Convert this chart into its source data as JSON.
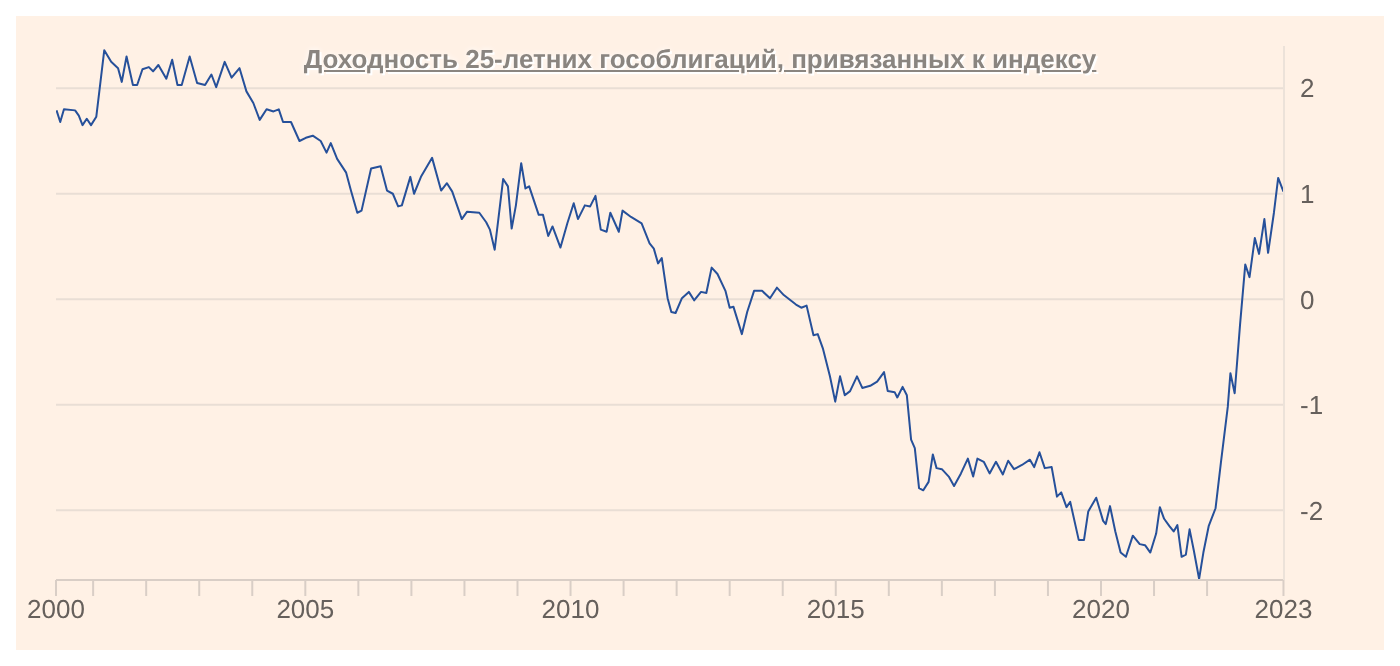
{
  "chart_data": {
    "type": "line",
    "title": "Доходность 25-летних гособлигаций, привязанных к индексу",
    "x": [
      2000.31,
      2000.38,
      2000.45,
      2000.66,
      2000.73,
      2000.8,
      2000.88,
      2000.96,
      2001.06,
      2001.21,
      2001.34,
      2001.47,
      2001.54,
      2001.63,
      2001.75,
      2001.83,
      2001.93,
      2002.05,
      2002.13,
      2002.23,
      2002.38,
      2002.49,
      2002.59,
      2002.67,
      2002.82,
      2002.96,
      2003.11,
      2003.23,
      2003.32,
      2003.48,
      2003.61,
      2003.76,
      2003.89,
      2004.02,
      2004.14,
      2004.27,
      2004.4,
      2004.5,
      2004.58,
      2004.73,
      2004.89,
      2005.01,
      2005.14,
      2005.29,
      2005.4,
      2005.48,
      2005.6,
      2005.77,
      2005.86,
      2005.98,
      2006.06,
      2006.24,
      2006.42,
      2006.54,
      2006.65,
      2006.75,
      2006.82,
      2006.98,
      2007.05,
      2007.18,
      2007.39,
      2007.56,
      2007.67,
      2007.77,
      2007.95,
      2008.05,
      2008.28,
      2008.41,
      2008.48,
      2008.57,
      2008.73,
      2008.82,
      2008.89,
      2008.97,
      2009.07,
      2009.15,
      2009.22,
      2009.4,
      2009.48,
      2009.58,
      2009.66,
      2009.81,
      2009.94,
      2010.06,
      2010.14,
      2010.27,
      2010.37,
      2010.47,
      2010.57,
      2010.68,
      2010.75,
      2010.91,
      2010.98,
      2011.14,
      2011.34,
      2011.49,
      2011.57,
      2011.65,
      2011.72,
      2011.83,
      2011.9,
      2011.98,
      2012.1,
      2012.23,
      2012.33,
      2012.46,
      2012.56,
      2012.66,
      2012.77,
      2012.92,
      2013.0,
      2013.07,
      2013.23,
      2013.33,
      2013.46,
      2013.61,
      2013.76,
      2013.89,
      2014.02,
      2014.25,
      2014.35,
      2014.45,
      2014.58,
      2014.66,
      2014.76,
      2014.89,
      2014.99,
      2015.08,
      2015.17,
      2015.27,
      2015.4,
      2015.5,
      2015.65,
      2015.78,
      2015.91,
      2015.98,
      2016.11,
      2016.16,
      2016.26,
      2016.34,
      2016.42,
      2016.49,
      2016.57,
      2016.65,
      2016.75,
      2016.83,
      2016.9,
      2017.0,
      2017.13,
      2017.23,
      2017.36,
      2017.49,
      2017.59,
      2017.67,
      2017.79,
      2017.9,
      2018.02,
      2018.15,
      2018.25,
      2018.36,
      2018.51,
      2018.66,
      2018.74,
      2018.84,
      2018.94,
      2019.07,
      2019.17,
      2019.25,
      2019.35,
      2019.42,
      2019.58,
      2019.68,
      2019.76,
      2019.91,
      2020.04,
      2020.09,
      2020.17,
      2020.27,
      2020.37,
      2020.47,
      2020.6,
      2020.73,
      2020.83,
      2020.93,
      2021.04,
      2021.11,
      2021.19,
      2021.29,
      2021.37,
      2021.44,
      2021.52,
      2021.6,
      2021.67,
      2021.75,
      2021.85,
      2021.93,
      2022.03,
      2022.16,
      2022.26,
      2022.39,
      2022.44,
      2022.52,
      2022.62,
      2022.72,
      2022.8,
      2022.9,
      2022.98,
      2023.08,
      2023.15,
      2023.26,
      2023.34,
      2023.44
    ],
    "series": [
      {
        "color": "#26509a",
        "values": [
          1.79,
          1.68,
          1.8,
          1.79,
          1.74,
          1.65,
          1.71,
          1.65,
          1.73,
          2.36,
          2.25,
          2.19,
          2.06,
          2.3,
          2.03,
          2.03,
          2.18,
          2.2,
          2.16,
          2.22,
          2.09,
          2.27,
          2.03,
          2.03,
          2.3,
          2.05,
          2.03,
          2.13,
          2.01,
          2.25,
          2.1,
          2.19,
          1.97,
          1.86,
          1.7,
          1.8,
          1.78,
          1.8,
          1.68,
          1.68,
          1.5,
          1.53,
          1.55,
          1.5,
          1.39,
          1.48,
          1.33,
          1.2,
          1.03,
          0.82,
          0.84,
          1.24,
          1.26,
          1.03,
          1.0,
          0.88,
          0.89,
          1.16,
          1.0,
          1.16,
          1.34,
          1.03,
          1.1,
          1.02,
          0.76,
          0.83,
          0.82,
          0.73,
          0.66,
          0.47,
          1.14,
          1.07,
          0.67,
          0.89,
          1.29,
          1.05,
          1.07,
          0.8,
          0.8,
          0.6,
          0.69,
          0.49,
          0.72,
          0.91,
          0.76,
          0.89,
          0.88,
          0.98,
          0.66,
          0.64,
          0.82,
          0.64,
          0.84,
          0.78,
          0.72,
          0.53,
          0.48,
          0.34,
          0.39,
          0.01,
          -0.12,
          -0.13,
          0.01,
          0.07,
          -0.01,
          0.07,
          0.06,
          0.3,
          0.24,
          0.08,
          -0.08,
          -0.07,
          -0.33,
          -0.12,
          0.08,
          0.08,
          0.01,
          0.11,
          0.04,
          -0.05,
          -0.08,
          -0.06,
          -0.34,
          -0.33,
          -0.47,
          -0.73,
          -0.97,
          -0.73,
          -0.91,
          -0.87,
          -0.73,
          -0.84,
          -0.82,
          -0.78,
          -0.69,
          -0.87,
          -0.88,
          -0.93,
          -0.83,
          -0.91,
          -1.33,
          -1.41,
          -1.79,
          -1.81,
          -1.73,
          -1.47,
          -1.6,
          -1.61,
          -1.68,
          -1.77,
          -1.65,
          -1.51,
          -1.68,
          -1.51,
          -1.54,
          -1.65,
          -1.54,
          -1.66,
          -1.53,
          -1.61,
          -1.57,
          -1.52,
          -1.59,
          -1.45,
          -1.6,
          -1.59,
          -1.87,
          -1.83,
          -1.97,
          -1.92,
          -2.28,
          -2.28,
          -2.01,
          -1.88,
          -2.1,
          -2.13,
          -1.96,
          -2.2,
          -2.4,
          -2.44,
          -2.24,
          -2.32,
          -2.33,
          -2.4,
          -2.22,
          -1.97,
          -2.08,
          -2.15,
          -2.2,
          -2.14,
          -2.44,
          -2.42,
          -2.18,
          -2.38,
          -2.65,
          -2.4,
          -2.15,
          -1.98,
          -1.55,
          -1.02,
          -0.7,
          -0.89,
          -0.25,
          0.33,
          0.21,
          0.58,
          0.43,
          0.76,
          0.44,
          0.82,
          1.15,
          1.02
        ]
      }
    ],
    "xlim": [
      2000.3,
      2023.45
    ],
    "xticks": [
      {
        "value": 2000.3,
        "label": "2000"
      },
      {
        "value": 2001,
        "label": null
      },
      {
        "value": 2002,
        "label": null
      },
      {
        "value": 2003,
        "label": null
      },
      {
        "value": 2004,
        "label": null
      },
      2005,
      {
        "value": 2006,
        "label": null
      },
      {
        "value": 2007,
        "label": null
      },
      {
        "value": 2008,
        "label": null
      },
      {
        "value": 2009,
        "label": null
      },
      2010,
      {
        "value": 2011,
        "label": null
      },
      {
        "value": 2012,
        "label": null
      },
      {
        "value": 2013,
        "label": null
      },
      {
        "value": 2014,
        "label": null
      },
      2015,
      {
        "value": 2016,
        "label": null
      },
      {
        "value": 2017,
        "label": null
      },
      {
        "value": 2018,
        "label": null
      },
      {
        "value": 2019,
        "label": null
      },
      2020,
      {
        "value": 2021,
        "label": null
      },
      {
        "value": 2022,
        "label": null
      },
      {
        "value": 2023.44,
        "label": "2023"
      }
    ],
    "ylim": [
      -2.66,
      2.4
    ],
    "yticks": [
      -2,
      -1,
      0,
      1,
      2
    ],
    "grid": "y"
  }
}
